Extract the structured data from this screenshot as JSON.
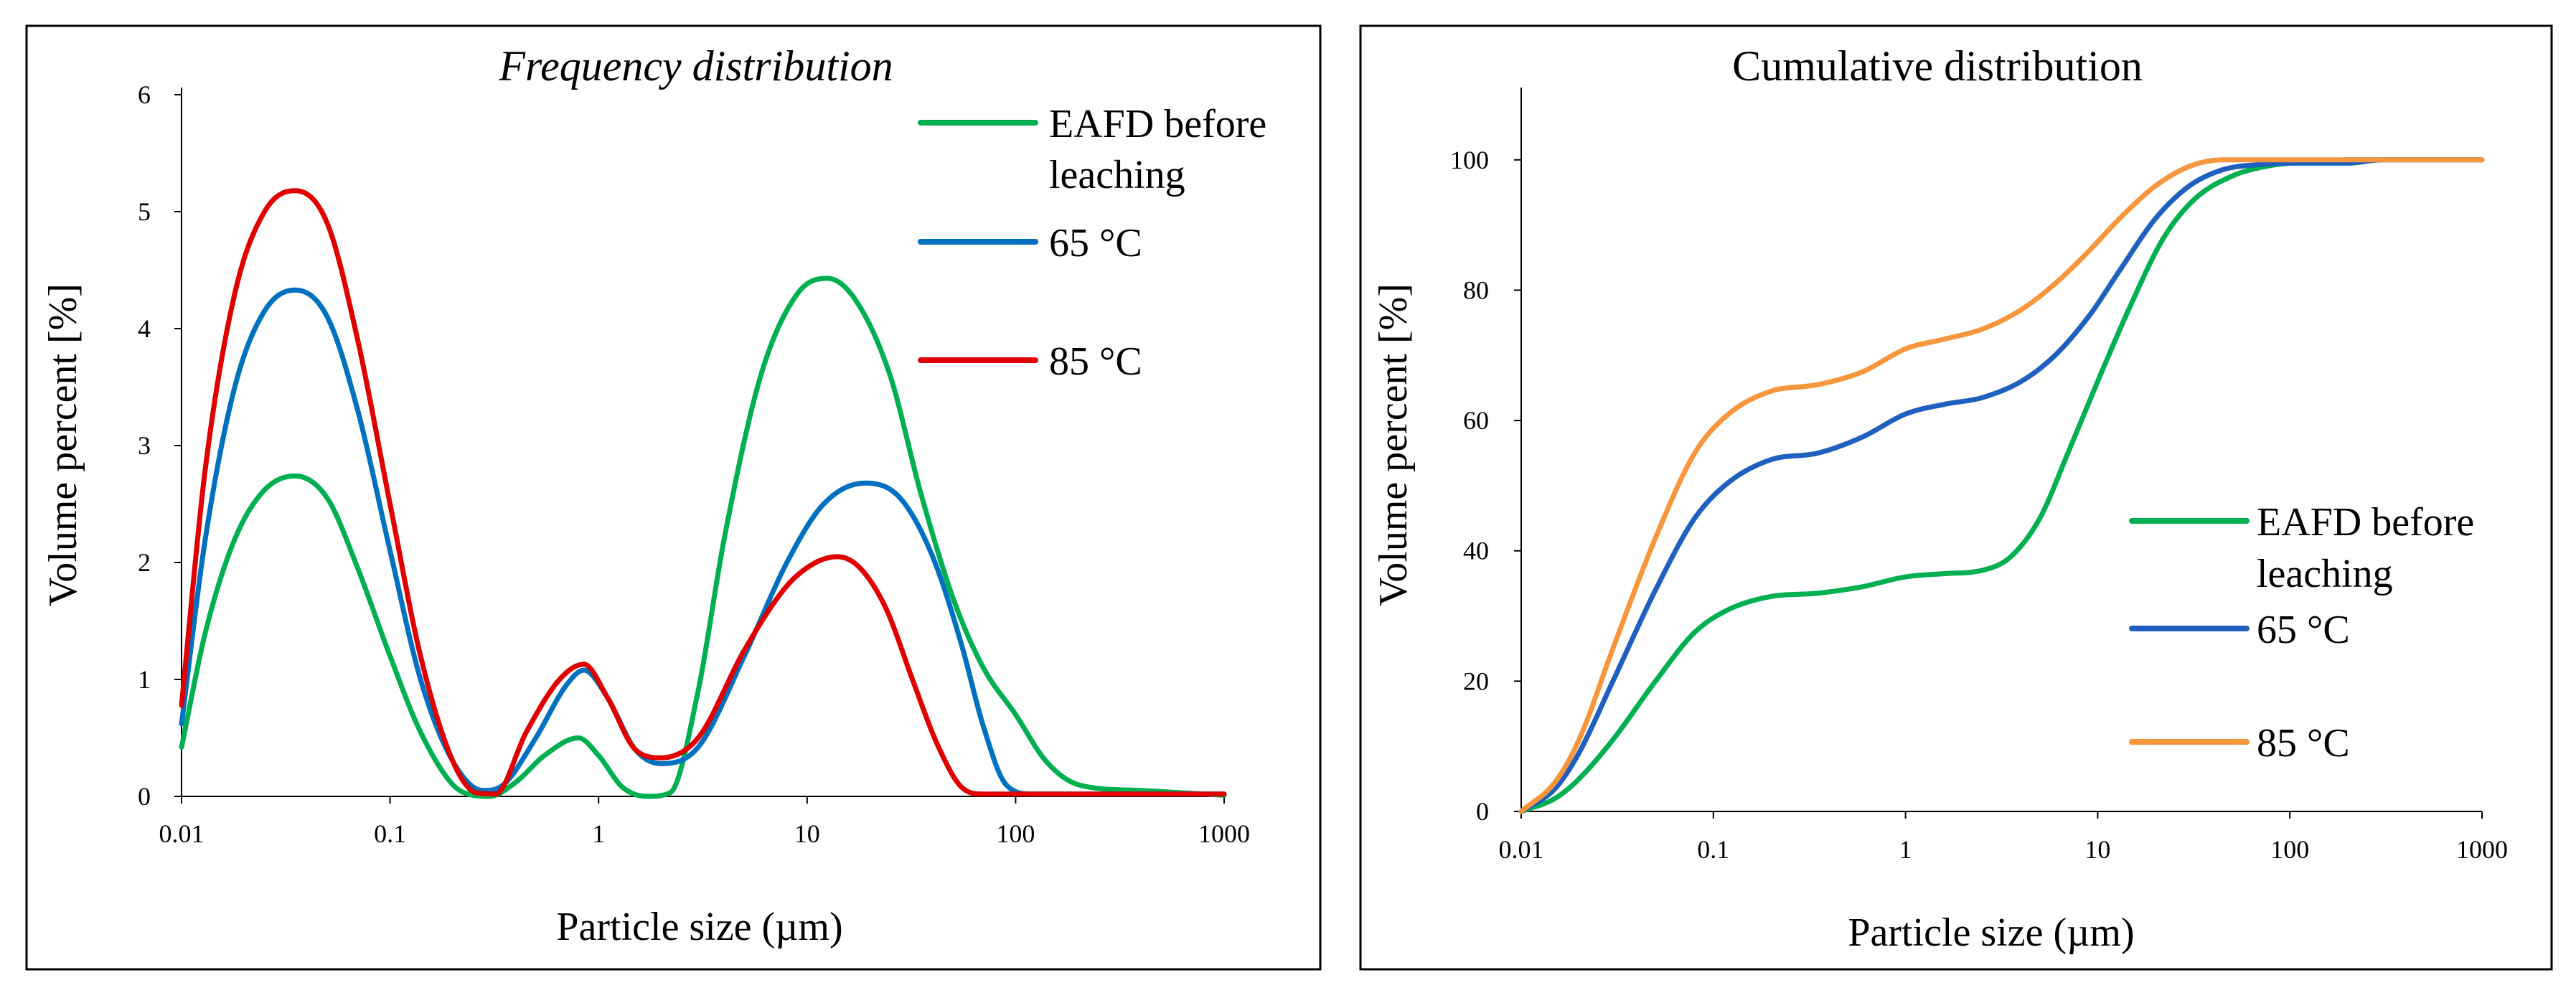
{
  "chart_data": [
    {
      "type": "line",
      "title": "Frequency distribution",
      "xlabel": "Particle size (µm)",
      "ylabel": "Volume percent [%]",
      "xscale": "log",
      "xlim": [
        0.01,
        1000
      ],
      "ylim": [
        0,
        6
      ],
      "x_ticks": [
        "0.01",
        "0.1",
        "1",
        "10",
        "100",
        "1000"
      ],
      "y_ticks": [
        "0",
        "1",
        "2",
        "3",
        "4",
        "5",
        "6"
      ],
      "grid": false,
      "legend_position": "top-right",
      "series": [
        {
          "name": "EAFD before leaching",
          "color": "#00b050",
          "x": [
            0.01,
            0.013,
            0.018,
            0.025,
            0.035,
            0.05,
            0.07,
            0.1,
            0.14,
            0.2,
            0.25,
            0.3,
            0.4,
            0.55,
            0.8,
            1.0,
            1.3,
            1.7,
            2.2,
            3.0,
            4.0,
            6.0,
            9.0,
            12.5,
            17.0,
            25.0,
            35.0,
            50.0,
            70.0,
            100.0,
            140.0,
            200.0,
            400.0,
            1000.0
          ],
          "y": [
            0.42,
            1.4,
            2.2,
            2.62,
            2.74,
            2.55,
            1.95,
            1.2,
            0.55,
            0.1,
            0.01,
            0.0,
            0.12,
            0.35,
            0.5,
            0.35,
            0.08,
            0.0,
            0.03,
            0.9,
            2.2,
            3.6,
            4.3,
            4.43,
            4.25,
            3.6,
            2.6,
            1.7,
            1.1,
            0.7,
            0.3,
            0.1,
            0.05,
            0.01
          ]
        },
        {
          "name": "65 °C",
          "color": "#0070c0",
          "x": [
            0.01,
            0.013,
            0.018,
            0.025,
            0.035,
            0.05,
            0.07,
            0.1,
            0.14,
            0.2,
            0.28,
            0.35,
            0.5,
            0.7,
            0.85,
            1.1,
            1.5,
            2.0,
            3.0,
            5.0,
            8.0,
            12.0,
            19.0,
            28.0,
            40.0,
            55.0,
            70.0,
            90.0,
            120.0,
            1000.0
          ],
          "y": [
            0.62,
            2.2,
            3.5,
            4.15,
            4.33,
            4.1,
            3.3,
            2.1,
            1.0,
            0.3,
            0.05,
            0.1,
            0.5,
            0.95,
            1.08,
            0.85,
            0.4,
            0.28,
            0.42,
            1.2,
            2.0,
            2.5,
            2.68,
            2.55,
            2.05,
            1.3,
            0.6,
            0.1,
            0.02,
            0.02
          ]
        },
        {
          "name": "85 °C",
          "color": "#e00000",
          "x": [
            0.01,
            0.013,
            0.018,
            0.025,
            0.035,
            0.05,
            0.07,
            0.1,
            0.14,
            0.2,
            0.26,
            0.32,
            0.45,
            0.65,
            0.85,
            1.1,
            1.5,
            2.0,
            3.0,
            5.0,
            8.0,
            11.0,
            14.0,
            18.0,
            24.0,
            32.0,
            42.0,
            55.0,
            70.0,
            1000.0
          ],
          "y": [
            0.78,
            2.8,
            4.3,
            5.0,
            5.18,
            4.9,
            3.9,
            2.5,
            1.2,
            0.3,
            0.03,
            0.02,
            0.55,
            1.0,
            1.13,
            0.85,
            0.4,
            0.33,
            0.5,
            1.25,
            1.8,
            2.0,
            2.05,
            1.95,
            1.6,
            1.0,
            0.45,
            0.08,
            0.02,
            0.02
          ]
        }
      ]
    },
    {
      "type": "line",
      "title": "Cumulative distribution",
      "xlabel": "Particle size (µm)",
      "ylabel": "Volume percent [%]",
      "xscale": "log",
      "xlim": [
        0.01,
        1000
      ],
      "ylim": [
        0,
        110
      ],
      "x_ticks": [
        "0.01",
        "0.1",
        "1",
        "10",
        "100",
        "1000"
      ],
      "y_ticks": [
        "0",
        "20",
        "40",
        "60",
        "80",
        "100"
      ],
      "grid": false,
      "legend_position": "bottom-right",
      "series": [
        {
          "name": "EAFD before leaching",
          "color": "#00b050",
          "x": [
            0.01,
            0.015,
            0.02,
            0.03,
            0.05,
            0.08,
            0.12,
            0.2,
            0.35,
            0.6,
            1.0,
            1.6,
            2.5,
            3.5,
            5.0,
            7.0,
            10.0,
            15.0,
            22.0,
            32.0,
            50.0,
            75.0,
            100.0,
            200.0,
            1000.0
          ],
          "y": [
            0.0,
            2.0,
            5.0,
            11.0,
            20.0,
            27.5,
            31.0,
            33.0,
            33.5,
            34.5,
            36.0,
            36.5,
            37.0,
            39.0,
            45.0,
            55.0,
            66.0,
            78.0,
            88.0,
            94.0,
            97.5,
            99.0,
            99.5,
            100.0,
            100.0
          ]
        },
        {
          "name": "65 °C",
          "color": "#1f5fbf",
          "x": [
            0.01,
            0.015,
            0.02,
            0.03,
            0.05,
            0.08,
            0.12,
            0.2,
            0.35,
            0.6,
            1.0,
            1.6,
            2.5,
            4.0,
            6.0,
            9.0,
            13.0,
            20.0,
            30.0,
            45.0,
            70.0,
            100.0,
            200.0,
            300.0,
            1000.0
          ],
          "y": [
            0.0,
            3.5,
            9.0,
            20.0,
            34.0,
            45.0,
            50.5,
            54.0,
            55.0,
            57.5,
            61.0,
            62.5,
            63.5,
            66.0,
            70.0,
            76.0,
            83.0,
            91.0,
            96.0,
            98.5,
            99.3,
            99.5,
            99.5,
            100.0,
            100.0
          ]
        },
        {
          "name": "85 °C",
          "color": "#f7963c",
          "x": [
            0.01,
            0.015,
            0.02,
            0.03,
            0.05,
            0.08,
            0.12,
            0.2,
            0.35,
            0.6,
            1.0,
            1.6,
            2.5,
            4.0,
            6.0,
            9.0,
            13.0,
            20.0,
            30.0,
            45.0,
            70.0,
            100.0,
            1000.0
          ],
          "y": [
            0.0,
            4.5,
            11.0,
            25.0,
            42.0,
            55.0,
            61.0,
            64.5,
            65.5,
            67.5,
            71.0,
            72.5,
            74.0,
            77.0,
            81.0,
            86.0,
            91.0,
            96.0,
            99.0,
            100.0,
            100.0,
            100.0,
            100.0
          ]
        }
      ]
    }
  ]
}
